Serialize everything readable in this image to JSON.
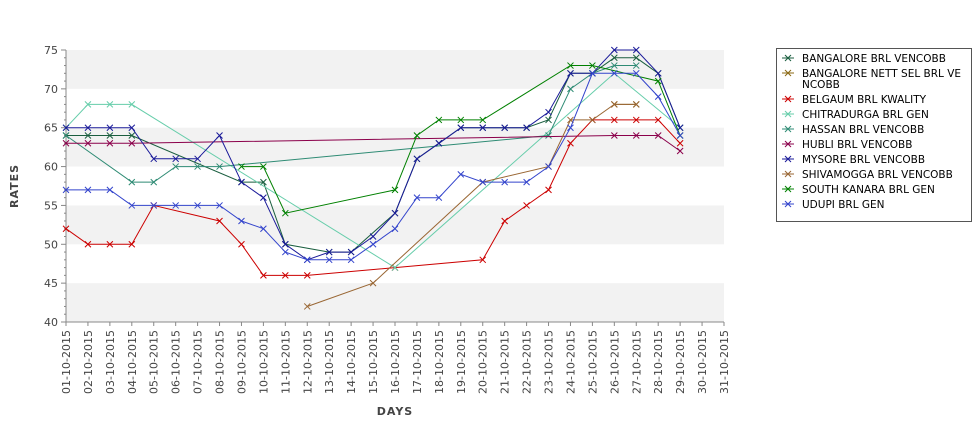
{
  "chart_data": {
    "type": "line",
    "title": "",
    "xlabel": "DAYS",
    "ylabel": "RATES",
    "ylim": [
      40,
      75
    ],
    "yticks": [
      40,
      45,
      50,
      55,
      60,
      65,
      70,
      75
    ],
    "grid": "alternating horizontal bands",
    "legend_position": "right",
    "categories": [
      "01-10-2015",
      "02-10-2015",
      "03-10-2015",
      "04-10-2015",
      "05-10-2015",
      "06-10-2015",
      "07-10-2015",
      "08-10-2015",
      "09-10-2015",
      "10-10-2015",
      "11-10-2015",
      "12-10-2015",
      "13-10-2015",
      "14-10-2015",
      "15-10-2015",
      "16-10-2015",
      "17-10-2015",
      "18-10-2015",
      "19-10-2015",
      "20-10-2015",
      "21-10-2015",
      "22-10-2015",
      "23-10-2015",
      "24-10-2015",
      "25-10-2015",
      "26-10-2015",
      "27-10-2015",
      "28-10-2015",
      "29-10-2015",
      "30-10-2015",
      "31-10-2015"
    ],
    "series": [
      {
        "name": "BANGALORE BRL VENCOBB",
        "color": "#1a5e3f",
        "values": [
          64,
          64,
          64,
          64,
          null,
          null,
          null,
          null,
          58,
          58,
          50,
          null,
          49,
          49,
          null,
          54,
          61,
          63,
          65,
          65,
          65,
          65,
          66,
          72,
          72,
          74,
          74,
          72,
          65,
          null,
          null
        ]
      },
      {
        "name": "BANGALORE NETT SEL BRL VENCOBB",
        "color": "#8b6914",
        "legend_lines": [
          "BANGALORE NETT SEL BRL VE",
          "NCOBB"
        ],
        "values": [
          null,
          null,
          null,
          null,
          null,
          null,
          null,
          null,
          null,
          null,
          null,
          null,
          null,
          null,
          null,
          null,
          null,
          null,
          null,
          null,
          null,
          null,
          null,
          null,
          null,
          68,
          68,
          null,
          null,
          null,
          null
        ]
      },
      {
        "name": "BELGAUM BRL KWALITY",
        "color": "#cc0000",
        "values": [
          52,
          50,
          50,
          50,
          55,
          null,
          null,
          53,
          50,
          46,
          46,
          46,
          null,
          null,
          null,
          47,
          null,
          null,
          null,
          48,
          53,
          55,
          57,
          63,
          66,
          66,
          66,
          66,
          63,
          null,
          null
        ]
      },
      {
        "name": "CHITRADURGA BRL GEN",
        "color": "#66cdaa",
        "values": [
          65,
          68,
          68,
          68,
          null,
          null,
          null,
          null,
          null,
          null,
          null,
          null,
          null,
          null,
          null,
          47,
          null,
          null,
          null,
          null,
          null,
          null,
          null,
          null,
          null,
          72,
          null,
          null,
          65,
          null,
          null
        ]
      },
      {
        "name": "HASSAN BRL VENCOBB",
        "color": "#2e8b74",
        "values": [
          64,
          null,
          null,
          58,
          58,
          60,
          60,
          60,
          null,
          null,
          null,
          null,
          null,
          null,
          null,
          null,
          null,
          null,
          null,
          null,
          null,
          null,
          64,
          70,
          72,
          73,
          73,
          null,
          null,
          null,
          null
        ]
      },
      {
        "name": "HUBLI BRL VENCOBB",
        "color": "#8b004b",
        "values": [
          63,
          63,
          63,
          63,
          null,
          null,
          null,
          null,
          null,
          null,
          null,
          null,
          null,
          null,
          null,
          null,
          null,
          null,
          null,
          null,
          null,
          null,
          null,
          null,
          null,
          64,
          64,
          64,
          62,
          null,
          null
        ]
      },
      {
        "name": "MYSORE BRL VENCOBB",
        "color": "#1a1a99",
        "values": [
          65,
          65,
          65,
          65,
          61,
          61,
          61,
          64,
          58,
          56,
          50,
          48,
          49,
          49,
          51,
          54,
          61,
          63,
          65,
          65,
          65,
          65,
          67,
          72,
          72,
          75,
          75,
          72,
          65,
          null,
          null
        ]
      },
      {
        "name": "SHIVAMOGGA BRL VENCOBB",
        "color": "#996633",
        "values": [
          null,
          null,
          null,
          null,
          null,
          null,
          null,
          null,
          null,
          null,
          null,
          42,
          null,
          null,
          45,
          null,
          null,
          null,
          null,
          58,
          null,
          null,
          60,
          66,
          66,
          68,
          68,
          null,
          null,
          null,
          null
        ]
      },
      {
        "name": "SOUTH KANARA BRL GEN",
        "color": "#008000",
        "values": [
          null,
          null,
          null,
          null,
          null,
          null,
          null,
          null,
          60,
          60,
          54,
          null,
          null,
          null,
          null,
          57,
          64,
          66,
          66,
          66,
          null,
          null,
          null,
          73,
          73,
          null,
          null,
          71,
          64,
          null,
          null
        ]
      },
      {
        "name": "UDUPI BRL GEN",
        "color": "#3344cc",
        "values": [
          57,
          57,
          57,
          55,
          55,
          55,
          55,
          55,
          53,
          52,
          49,
          48,
          48,
          48,
          50,
          52,
          56,
          56,
          59,
          58,
          58,
          58,
          60,
          65,
          72,
          72,
          72,
          69,
          64,
          null,
          null
        ]
      }
    ]
  }
}
